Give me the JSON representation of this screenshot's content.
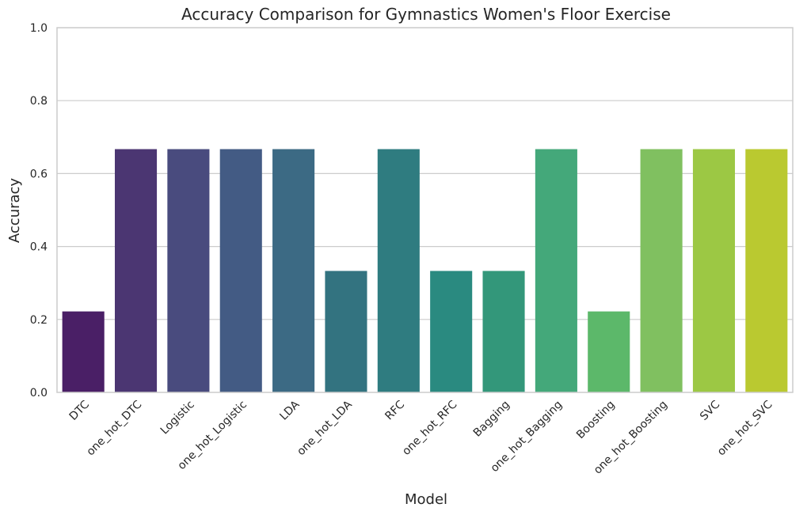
{
  "chart_data": {
    "type": "bar",
    "title": "Accuracy Comparison for Gymnastics Women's Floor Exercise",
    "xlabel": "Model",
    "ylabel": "Accuracy",
    "ylim": [
      0,
      1
    ],
    "yticks": [
      "0.0",
      "0.2",
      "0.4",
      "0.6",
      "0.8",
      "1.0"
    ],
    "grid": true,
    "categories": [
      "DTC",
      "one_hot_DTC",
      "Logistic",
      "one_hot_Logistic",
      "LDA",
      "one_hot_LDA",
      "RFC",
      "one_hot_RFC",
      "Bagging",
      "one_hot_Bagging",
      "Boosting",
      "one_hot_Boosting",
      "SVC",
      "one_hot_SVC"
    ],
    "values": [
      0.222,
      0.667,
      0.667,
      0.667,
      0.667,
      0.333,
      0.667,
      0.333,
      0.333,
      0.667,
      0.222,
      0.667,
      0.667,
      0.667
    ],
    "colors": [
      "#4a1f66",
      "#4b3672",
      "#494b7e",
      "#435b84",
      "#3c6a84",
      "#337380",
      "#2f7c80",
      "#2a8a80",
      "#33977a",
      "#44a87a",
      "#5cb86a",
      "#80c060",
      "#9cc844",
      "#bac930"
    ]
  }
}
